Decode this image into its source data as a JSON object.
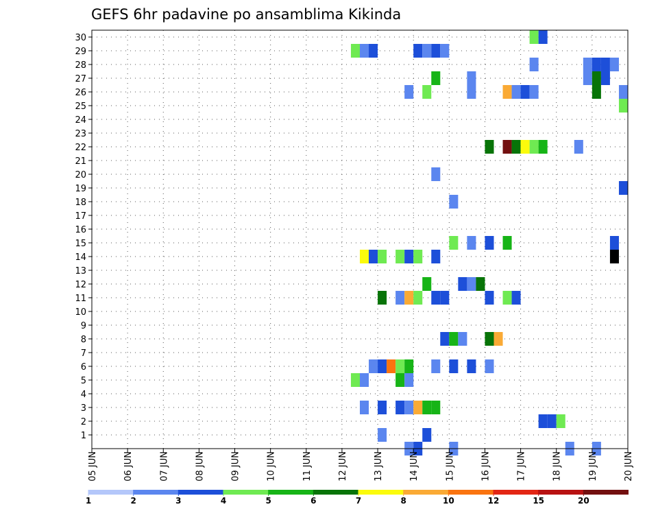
{
  "chart_data": {
    "type": "heatmap",
    "title": "GEFS 6hr padavine po ansamblima Kikinda",
    "y_categories": [
      "1",
      "2",
      "3",
      "4",
      "5",
      "6",
      "7",
      "8",
      "9",
      "10",
      "11",
      "12",
      "13",
      "14",
      "15",
      "16",
      "17",
      "18",
      "19",
      "20",
      "21",
      "22",
      "23",
      "24",
      "25",
      "26",
      "27",
      "28",
      "29",
      "30"
    ],
    "x_tick_labels": [
      "05 JUN",
      "06 JUN",
      "07 JUN",
      "08 JUN",
      "09 JUN",
      "10 JUN",
      "11 JUN",
      "12 JUN",
      "13 JUN",
      "14 JUN",
      "15 JUN",
      "16 JUN",
      "17 JUN",
      "18 JUN",
      "19 JUN",
      "20 JUN"
    ],
    "x_range_days": [
      0,
      15
    ],
    "grid": true,
    "legend": {
      "placement": "bottom",
      "tick_labels": [
        "1",
        "2",
        "3",
        "4",
        "5",
        "6",
        "7",
        "8",
        "10",
        "12",
        "15",
        "20"
      ],
      "colors": [
        "#b4c7fa",
        "#5b86ef",
        "#1d4fd9",
        "#6fea52",
        "#17b417",
        "#087408",
        "#fbfb0c",
        "#faaa35",
        "#fa7410",
        "#e32614",
        "#b81212",
        "#731010"
      ]
    },
    "cells": [
      [
        7.25,
        29,
        3
      ],
      [
        7.5,
        29,
        1
      ],
      [
        7.75,
        29,
        2
      ],
      [
        9,
        29,
        2
      ],
      [
        9.25,
        29,
        1
      ],
      [
        9.5,
        29,
        2
      ],
      [
        9.75,
        29,
        1
      ],
      [
        12.25,
        30,
        3
      ],
      [
        12.5,
        30,
        2
      ],
      [
        15,
        30,
        3
      ],
      [
        12.25,
        28,
        1
      ],
      [
        13.75,
        28,
        1
      ],
      [
        14,
        28,
        2
      ],
      [
        14.25,
        28,
        2
      ],
      [
        14.5,
        28,
        1
      ],
      [
        9.5,
        27,
        4
      ],
      [
        10.5,
        27,
        1
      ],
      [
        13.75,
        27,
        1
      ],
      [
        14,
        27,
        5
      ],
      [
        14.25,
        27,
        2
      ],
      [
        8.75,
        26,
        1
      ],
      [
        9.25,
        26,
        3
      ],
      [
        10.5,
        26,
        1
      ],
      [
        11.5,
        26,
        7
      ],
      [
        11.75,
        26,
        1
      ],
      [
        12,
        26,
        2
      ],
      [
        12.25,
        26,
        1
      ],
      [
        14,
        26,
        5
      ],
      [
        14.75,
        26,
        1
      ],
      [
        15,
        26,
        8
      ],
      [
        14.75,
        25,
        3
      ],
      [
        15,
        25,
        1
      ],
      [
        15.25,
        25,
        4
      ],
      [
        11,
        22,
        5
      ],
      [
        11.5,
        22,
        11
      ],
      [
        11.75,
        22,
        5
      ],
      [
        12,
        22,
        6
      ],
      [
        12.25,
        22,
        3
      ],
      [
        12.5,
        22,
        4
      ],
      [
        13.5,
        22,
        1
      ],
      [
        15,
        22,
        1
      ],
      [
        9.5,
        20,
        1
      ],
      [
        15,
        21,
        6
      ],
      [
        15.25,
        21,
        4
      ],
      [
        14.75,
        19,
        2
      ],
      [
        15,
        19,
        11
      ],
      [
        15,
        18,
        5
      ],
      [
        10,
        18,
        1
      ],
      [
        15,
        17,
        1
      ],
      [
        10,
        15,
        3
      ],
      [
        10.5,
        15,
        1
      ],
      [
        11,
        15,
        2
      ],
      [
        11.5,
        15,
        4
      ],
      [
        14.5,
        15,
        2
      ],
      [
        7.5,
        14,
        6
      ],
      [
        7.75,
        14,
        2
      ],
      [
        8,
        14,
        3
      ],
      [
        8.5,
        14,
        3
      ],
      [
        8.75,
        14,
        2
      ],
      [
        9,
        14,
        3
      ],
      [
        9.5,
        14,
        2
      ],
      [
        14.5,
        14,
        12
      ],
      [
        9.25,
        12,
        4
      ],
      [
        10.25,
        12,
        2
      ],
      [
        10.5,
        12,
        1
      ],
      [
        10.75,
        12,
        5
      ],
      [
        8,
        11,
        5
      ],
      [
        8.5,
        11,
        1
      ],
      [
        8.75,
        11,
        7
      ],
      [
        9,
        11,
        3
      ],
      [
        9.5,
        11,
        2
      ],
      [
        9.75,
        11,
        2
      ],
      [
        11,
        11,
        2
      ],
      [
        11.5,
        11,
        3
      ],
      [
        11.75,
        11,
        2
      ],
      [
        9.75,
        8,
        2
      ],
      [
        10,
        8,
        4
      ],
      [
        10.25,
        8,
        1
      ],
      [
        11,
        8,
        5
      ],
      [
        11.25,
        8,
        7
      ],
      [
        7.75,
        6,
        1
      ],
      [
        8,
        6,
        2
      ],
      [
        8.25,
        6,
        8
      ],
      [
        8.5,
        6,
        3
      ],
      [
        8.75,
        6,
        4
      ],
      [
        9.5,
        6,
        1
      ],
      [
        10,
        6,
        2
      ],
      [
        10.5,
        6,
        2
      ],
      [
        11,
        6,
        1
      ],
      [
        7.25,
        5,
        3
      ],
      [
        7.5,
        5,
        1
      ],
      [
        8.5,
        5,
        4
      ],
      [
        8.75,
        5,
        1
      ],
      [
        15,
        4,
        3
      ],
      [
        7.5,
        3,
        1
      ],
      [
        8,
        3,
        2
      ],
      [
        8.5,
        3,
        2
      ],
      [
        8.75,
        3,
        1
      ],
      [
        9,
        3,
        7
      ],
      [
        9.25,
        3,
        4
      ],
      [
        9.5,
        3,
        4
      ],
      [
        12.5,
        2,
        2
      ],
      [
        12.75,
        2,
        2
      ],
      [
        13,
        2,
        3
      ],
      [
        8,
        1,
        1
      ],
      [
        9.25,
        1,
        2
      ],
      [
        15,
        1,
        3
      ],
      [
        8.75,
        0,
        1
      ],
      [
        9,
        0,
        2
      ],
      [
        10,
        0,
        1
      ],
      [
        13.25,
        0,
        1
      ],
      [
        14,
        0,
        1
      ]
    ]
  }
}
